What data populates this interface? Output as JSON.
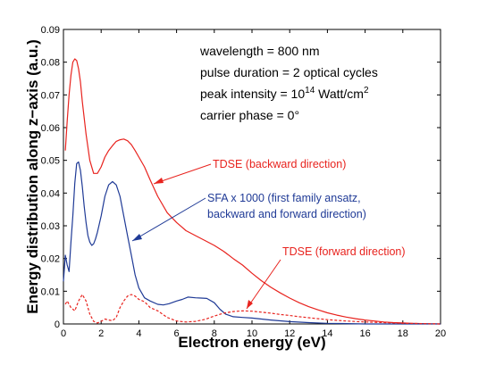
{
  "chart_data": {
    "type": "line",
    "xlabel": "Electron energy (eV)",
    "ylabel": "Energy distribution along z−axis (a.u.)",
    "xlim": [
      0,
      20
    ],
    "ylim": [
      0,
      0.09
    ],
    "xticks": [
      "0",
      "2",
      "4",
      "6",
      "8",
      "10",
      "12",
      "14",
      "16",
      "18",
      "20"
    ],
    "yticks": [
      "0",
      "0.01",
      "0.02",
      "0.03",
      "0.04",
      "0.05",
      "0.06",
      "0.07",
      "0.08",
      "0.09"
    ],
    "grid": false,
    "info": {
      "line1": "wavelength = 800 nm",
      "line2": "pulse duration = 2 optical cycles",
      "line3_pre": "peak intensity = 10",
      "line3_exp": "14",
      "line3_mid": " Watt/cm",
      "line3_sup2": "2",
      "line4": "carrier phase = 0°"
    },
    "annotations": {
      "backward": "TDSE (backward direction)",
      "sfa_line1": "SFA x 1000 (first family ansatz,",
      "sfa_line2": "backward and forward direction)",
      "forward": "TDSE (forward direction)"
    },
    "colors": {
      "red": "#e8231e",
      "blue": "#1f3a96"
    },
    "series": [
      {
        "name": "TDSE (backward direction)",
        "color": "#e8231e",
        "style": "solid",
        "x": [
          0.1,
          0.2,
          0.3,
          0.4,
          0.5,
          0.6,
          0.7,
          0.8,
          0.9,
          1.0,
          1.2,
          1.4,
          1.6,
          1.8,
          2.0,
          2.2,
          2.4,
          2.6,
          2.8,
          3.0,
          3.2,
          3.4,
          3.6,
          3.8,
          4.0,
          4.3,
          4.6,
          5.0,
          5.5,
          6.0,
          6.5,
          7.0,
          7.5,
          8.0,
          8.5,
          9.0,
          9.5,
          10.0,
          10.5,
          11.0,
          11.5,
          12.0,
          12.5,
          13.0,
          13.5,
          14.0,
          14.5,
          15.0,
          15.5,
          16.0,
          16.5,
          17.0,
          17.5,
          18.0,
          18.5,
          19.0,
          19.5,
          20.0
        ],
        "y": [
          0.053,
          0.062,
          0.07,
          0.076,
          0.08,
          0.081,
          0.0805,
          0.078,
          0.074,
          0.068,
          0.058,
          0.05,
          0.046,
          0.046,
          0.048,
          0.051,
          0.053,
          0.0545,
          0.0558,
          0.0563,
          0.0565,
          0.056,
          0.0548,
          0.053,
          0.051,
          0.048,
          0.044,
          0.039,
          0.034,
          0.031,
          0.0285,
          0.027,
          0.0255,
          0.024,
          0.0222,
          0.02,
          0.018,
          0.0155,
          0.0132,
          0.0112,
          0.0095,
          0.0079,
          0.0065,
          0.0053,
          0.0043,
          0.0034,
          0.0027,
          0.0021,
          0.0016,
          0.0012,
          0.0009,
          0.0006,
          0.0004,
          0.0003,
          0.0002,
          0.0001,
          5e-05,
          0.0
        ]
      },
      {
        "name": "SFA x 1000 (first family ansatz, backward and forward direction)",
        "color": "#1f3a96",
        "style": "solid",
        "x": [
          0.0,
          0.1,
          0.2,
          0.3,
          0.4,
          0.5,
          0.6,
          0.7,
          0.8,
          0.9,
          1.0,
          1.1,
          1.2,
          1.3,
          1.4,
          1.5,
          1.6,
          1.7,
          1.8,
          2.0,
          2.2,
          2.4,
          2.6,
          2.8,
          3.0,
          3.2,
          3.4,
          3.6,
          3.8,
          4.0,
          4.3,
          4.6,
          5.0,
          5.3,
          5.6,
          6.0,
          6.3,
          6.6,
          7.0,
          7.3,
          7.6,
          8.0,
          8.3,
          8.6,
          9.0,
          9.5,
          10.0,
          10.5,
          11.0,
          12.0,
          13.0,
          14.0,
          15.0,
          16.0,
          17.0,
          18.0,
          19.0,
          20.0
        ],
        "y": [
          0.013,
          0.021,
          0.018,
          0.016,
          0.025,
          0.033,
          0.043,
          0.049,
          0.0495,
          0.047,
          0.042,
          0.036,
          0.031,
          0.027,
          0.025,
          0.024,
          0.0245,
          0.026,
          0.028,
          0.033,
          0.039,
          0.0425,
          0.0435,
          0.0425,
          0.039,
          0.033,
          0.027,
          0.021,
          0.015,
          0.011,
          0.008,
          0.007,
          0.006,
          0.0058,
          0.0062,
          0.007,
          0.0075,
          0.0082,
          0.008,
          0.0079,
          0.0078,
          0.0065,
          0.0045,
          0.003,
          0.0022,
          0.002,
          0.0018,
          0.0015,
          0.0012,
          0.0007,
          0.0004,
          0.0002,
          0.0001,
          0.0,
          0.0,
          0.0,
          0.0,
          0.0
        ]
      },
      {
        "name": "TDSE (forward direction)",
        "color": "#e8231e",
        "style": "dashed",
        "x": [
          0.1,
          0.2,
          0.4,
          0.6,
          0.8,
          1.0,
          1.2,
          1.4,
          1.6,
          1.8,
          2.0,
          2.2,
          2.4,
          2.6,
          2.8,
          3.0,
          3.2,
          3.4,
          3.6,
          3.8,
          4.0,
          4.3,
          4.6,
          5.0,
          5.5,
          6.0,
          6.5,
          7.0,
          7.5,
          8.0,
          8.5,
          9.0,
          9.5,
          10.0,
          10.5,
          11.0,
          11.5,
          12.0,
          12.5,
          13.0,
          13.5,
          14.0,
          15.0,
          16.0,
          17.0,
          18.0,
          19.0,
          20.0
        ],
        "y": [
          0.006,
          0.007,
          0.005,
          0.004,
          0.007,
          0.009,
          0.007,
          0.003,
          0.0008,
          0.0003,
          0.0008,
          0.0015,
          0.0012,
          0.001,
          0.002,
          0.005,
          0.007,
          0.0085,
          0.009,
          0.0085,
          0.0075,
          0.0068,
          0.005,
          0.004,
          0.002,
          0.0009,
          0.0006,
          0.0008,
          0.0014,
          0.0024,
          0.0033,
          0.0038,
          0.004,
          0.0039,
          0.0036,
          0.0033,
          0.0029,
          0.0026,
          0.0022,
          0.0019,
          0.0016,
          0.0013,
          0.0009,
          0.0006,
          0.0004,
          0.0002,
          0.0001,
          0.0
        ]
      }
    ]
  }
}
